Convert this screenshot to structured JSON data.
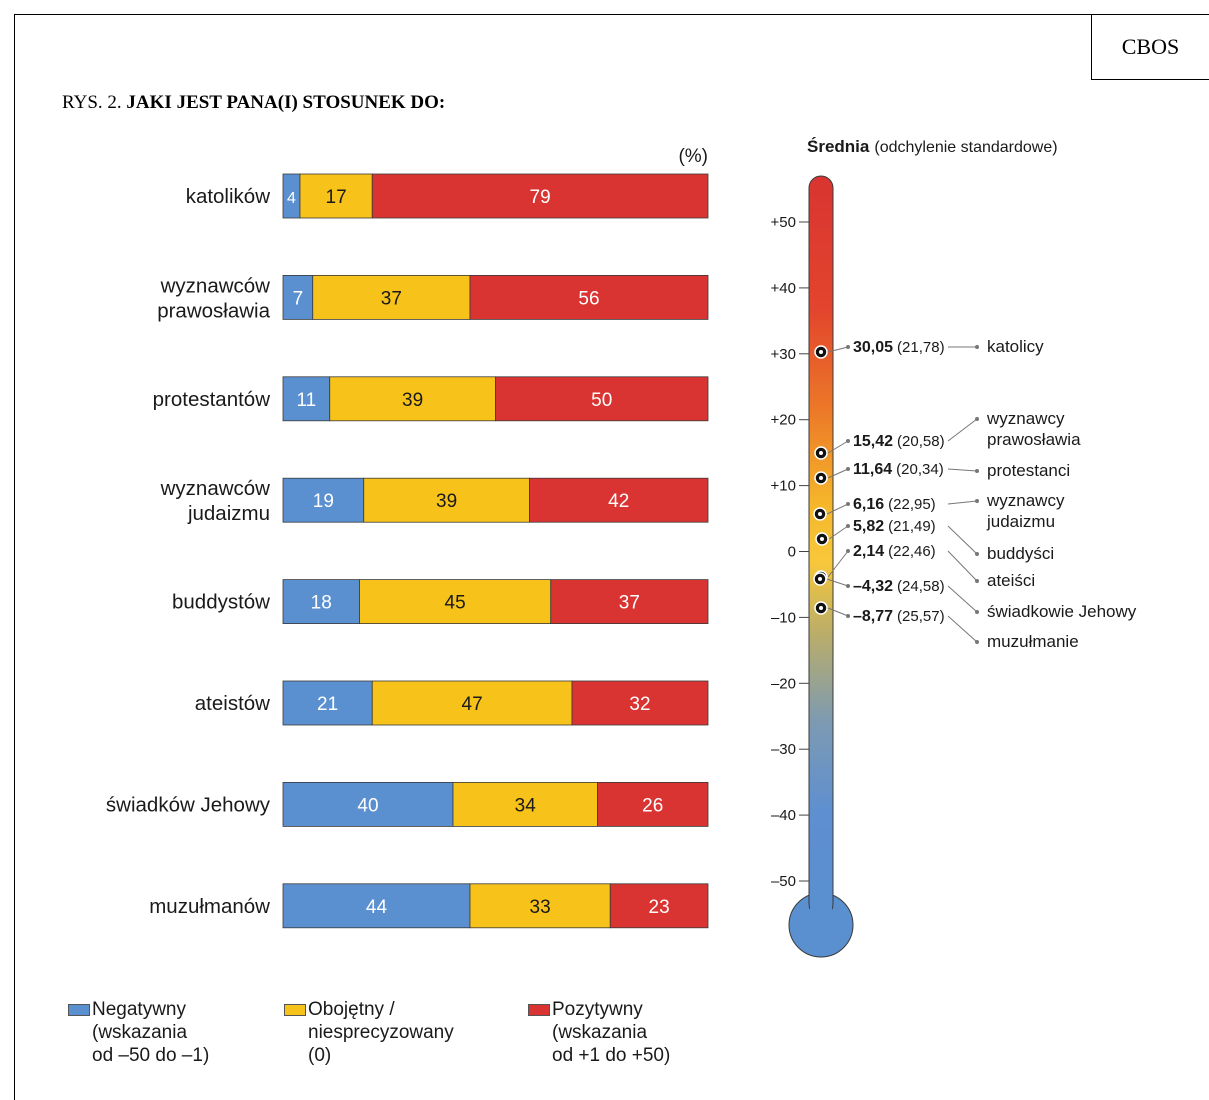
{
  "source_label": "CBOS",
  "title": {
    "prefix": "RYS. 2.",
    "main": "JAKI JEST PANA(I) STOSUNEK DO:"
  },
  "colors": {
    "negative": "#5a8fd0",
    "neutral": "#f7c21a",
    "positive": "#d93431"
  },
  "legend": [
    {
      "key": "negative",
      "label": "Negatywny\n(wskazania\nod –50 do –1)"
    },
    {
      "key": "neutral",
      "label": "Obojętny /\nniesprecyzowany\n(0)"
    },
    {
      "key": "positive",
      "label": "Pozytywny\n(wskazania\nod +1 do +50)"
    }
  ],
  "chart_data": [
    {
      "type": "bar",
      "orientation": "horizontal",
      "stacked": true,
      "unit_label": "(%)",
      "categories": [
        "katolików",
        "wyznawców\nprawosławia",
        "protestantów",
        "wyznawców\njudaizmu",
        "buddystów",
        "ateistów",
        "świadków Jehowy",
        "muzułmanów"
      ],
      "series": [
        {
          "name": "Negatywny",
          "values": [
            4,
            7,
            11,
            19,
            18,
            21,
            40,
            44
          ]
        },
        {
          "name": "Obojętny / niesprecyzowany",
          "values": [
            17,
            37,
            39,
            39,
            45,
            47,
            34,
            33
          ]
        },
        {
          "name": "Pozytywny",
          "values": [
            79,
            56,
            50,
            42,
            37,
            32,
            26,
            23
          ]
        }
      ],
      "xlim": [
        0,
        100
      ]
    },
    {
      "type": "scatter",
      "style": "thermometer",
      "title": "Średnia",
      "subtitle": "(odchylenie standardowe)",
      "axis_ticks": [
        "+50",
        "+40",
        "+30",
        "+20",
        "+10",
        "0",
        "–10",
        "–20",
        "–30",
        "–40",
        "–50"
      ],
      "ylim": [
        -50,
        50
      ],
      "points": [
        {
          "label": "katolicy",
          "mean": 30.05,
          "mean_text": "30,05",
          "sd_text": "(21,78)"
        },
        {
          "label": "wyznawcy\nprawosławia",
          "mean": 15.42,
          "mean_text": "15,42",
          "sd_text": "(20,58)"
        },
        {
          "label": "protestanci",
          "mean": 11.64,
          "mean_text": "11,64",
          "sd_text": "(20,34)"
        },
        {
          "label": "wyznawcy\njudaizmu",
          "mean": 6.16,
          "mean_text": "6,16",
          "sd_text": "(22,95)"
        },
        {
          "label": "buddyści",
          "mean": 5.82,
          "mean_text": "5,82",
          "sd_text": "(21,49)"
        },
        {
          "label": "ateiści",
          "mean": 2.14,
          "mean_text": "2,14",
          "sd_text": "(22,46)"
        },
        {
          "label": "świadkowie Jehowy",
          "mean": -4.32,
          "mean_text": "–4,32",
          "sd_text": "(24,58)"
        },
        {
          "label": "muzułmanie",
          "mean": -8.77,
          "mean_text": "–8,77",
          "sd_text": "(25,57)"
        }
      ]
    }
  ]
}
